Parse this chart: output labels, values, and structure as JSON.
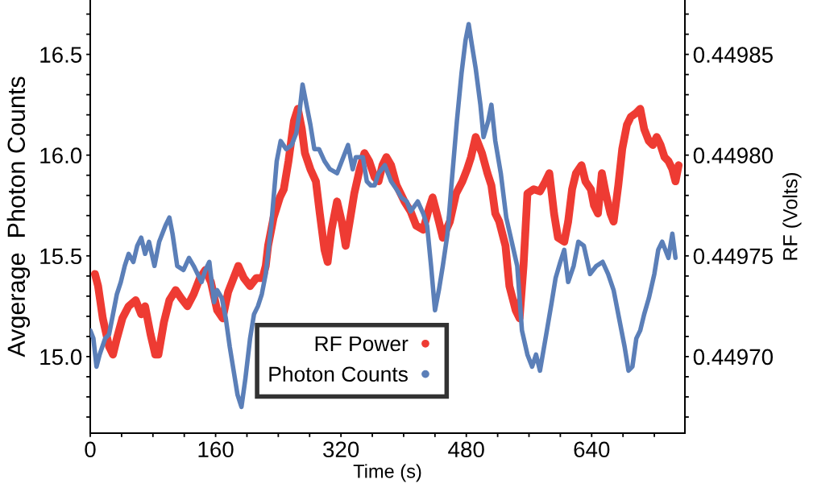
{
  "chart_data": {
    "type": "line",
    "xlabel": "Time (s)",
    "ylabel": "Avgerage  Photon Counts",
    "y2label": "RF (Volts)",
    "legend": "bottom",
    "grid": false,
    "marker": "none",
    "line_style": "solid",
    "xlim": [
      0,
      759
    ],
    "ylim": [
      14.62,
      16.77
    ],
    "y2lim": [
      0.449662,
      0.449877
    ],
    "xticks": [
      0,
      {
        "value": 40,
        "label": null
      },
      {
        "value": 80,
        "label": null
      },
      {
        "value": 120,
        "label": null
      },
      160,
      {
        "value": 200,
        "label": null
      },
      {
        "value": 240,
        "label": null
      },
      {
        "value": 280,
        "label": null
      },
      320,
      {
        "value": 360,
        "label": null
      },
      {
        "value": 400,
        "label": null
      },
      {
        "value": 440,
        "label": null
      },
      480,
      {
        "value": 520,
        "label": null
      },
      {
        "value": 560,
        "label": null
      },
      {
        "value": 600,
        "label": null
      },
      640,
      {
        "value": 680,
        "label": null
      },
      {
        "value": 720,
        "label": null
      }
    ],
    "yticks": [
      {
        "value": 14.7,
        "label": null
      },
      {
        "value": 14.8,
        "label": null
      },
      {
        "value": 14.9,
        "label": null
      },
      {
        "value": 15.0,
        "label": "15.0"
      },
      {
        "value": 15.1,
        "label": null
      },
      {
        "value": 15.2,
        "label": null
      },
      {
        "value": 15.3,
        "label": null
      },
      {
        "value": 15.4,
        "label": null
      },
      {
        "value": 15.5,
        "label": "15.5"
      },
      {
        "value": 15.6,
        "label": null
      },
      {
        "value": 15.7,
        "label": null
      },
      {
        "value": 15.8,
        "label": null
      },
      {
        "value": 15.9,
        "label": null
      },
      {
        "value": 16.0,
        "label": "16.0"
      },
      {
        "value": 16.1,
        "label": null
      },
      {
        "value": 16.2,
        "label": null
      },
      {
        "value": 16.3,
        "label": null
      },
      {
        "value": 16.4,
        "label": null
      },
      {
        "value": 16.5,
        "label": "16.5"
      },
      {
        "value": 16.6,
        "label": null
      },
      {
        "value": 16.7,
        "label": null
      }
    ],
    "y2ticks": [
      {
        "value": 0.44967,
        "label": null
      },
      {
        "value": 0.44968,
        "label": null
      },
      {
        "value": 0.44969,
        "label": null
      },
      {
        "value": 0.4497,
        "label": "0.44970"
      },
      {
        "value": 0.44971,
        "label": null
      },
      {
        "value": 0.44972,
        "label": null
      },
      {
        "value": 0.44973,
        "label": null
      },
      {
        "value": 0.44974,
        "label": null
      },
      {
        "value": 0.44975,
        "label": "0.44975"
      },
      {
        "value": 0.44976,
        "label": null
      },
      {
        "value": 0.44977,
        "label": null
      },
      {
        "value": 0.44978,
        "label": null
      },
      {
        "value": 0.44979,
        "label": null
      },
      {
        "value": 0.4498,
        "label": "0.44980"
      },
      {
        "value": 0.44981,
        "label": null
      },
      {
        "value": 0.44982,
        "label": null
      },
      {
        "value": 0.44983,
        "label": null
      },
      {
        "value": 0.44984,
        "label": null
      },
      {
        "value": 0.44985,
        "label": "0.44985"
      },
      {
        "value": 0.44986,
        "label": null
      },
      {
        "value": 0.44987,
        "label": null
      }
    ],
    "series": [
      {
        "name": "RF Power",
        "color": "#ee3b33",
        "axis": "y2",
        "x": [
          6,
          10,
          16,
          24,
          29,
          34,
          41,
          49,
          58,
          65,
          70,
          77,
          83,
          87,
          94,
          101,
          109,
          116,
          124,
          132,
          140,
          147,
          154,
          162,
          169,
          176,
          183,
          189,
          196,
          204,
          212,
          220,
          224,
          227,
          234,
          242,
          247,
          253,
          260,
          265,
          270,
          274,
          281,
          288,
          293,
          299,
          303,
          308,
          315,
          321,
          326,
          332,
          337,
          344,
          350,
          356,
          363,
          368,
          373,
          378,
          384,
          391,
          396,
          401,
          409,
          416,
          425,
          432,
          437,
          445,
          450,
          459,
          467,
          475,
          481,
          486,
          492,
          500,
          507,
          512,
          517,
          522,
          530,
          535,
          543,
          548,
          553,
          558,
          566,
          574,
          581,
          586,
          592,
          597,
          605,
          610,
          615,
          620,
          627,
          632,
          639,
          643,
          648,
          653,
          658,
          664,
          668,
          674,
          679,
          685,
          690,
          697,
          702,
          707,
          713,
          718,
          723,
          728,
          733,
          738,
          743,
          747,
          751
        ],
        "values": [
          0.449741,
          0.449735,
          0.449719,
          0.449705,
          0.449701,
          0.449709,
          0.449719,
          0.449725,
          0.449728,
          0.449721,
          0.449725,
          0.449711,
          0.449701,
          0.449701,
          0.449717,
          0.449728,
          0.449733,
          0.449729,
          0.449725,
          0.449731,
          0.449739,
          0.449743,
          0.449737,
          0.449723,
          0.449719,
          0.449732,
          0.449739,
          0.449745,
          0.449739,
          0.449735,
          0.449739,
          0.449739,
          0.449745,
          0.449755,
          0.449769,
          0.449779,
          0.449783,
          0.449797,
          0.449817,
          0.449823,
          0.449813,
          0.449801,
          0.449793,
          0.449787,
          0.449771,
          0.449753,
          0.449747,
          0.449763,
          0.449777,
          0.449767,
          0.449755,
          0.449769,
          0.449781,
          0.449793,
          0.449801,
          0.449797,
          0.449789,
          0.449787,
          0.449795,
          0.449799,
          0.449795,
          0.449785,
          0.449781,
          0.449777,
          0.449772,
          0.449765,
          0.449763,
          0.449773,
          0.449779,
          0.449767,
          0.449759,
          0.449767,
          0.449781,
          0.449787,
          0.449793,
          0.449799,
          0.449809,
          0.449801,
          0.449791,
          0.449785,
          0.449771,
          0.449767,
          0.449755,
          0.449735,
          0.449723,
          0.449719,
          0.449745,
          0.449781,
          0.449783,
          0.449782,
          0.449787,
          0.449791,
          0.449771,
          0.449759,
          0.449757,
          0.449767,
          0.449783,
          0.449791,
          0.449795,
          0.449787,
          0.449783,
          0.449775,
          0.449771,
          0.449791,
          0.449781,
          0.449771,
          0.449767,
          0.449785,
          0.449803,
          0.449815,
          0.449819,
          0.449821,
          0.449823,
          0.449813,
          0.449807,
          0.449805,
          0.449809,
          0.449805,
          0.449799,
          0.449797,
          0.449793,
          0.449787,
          0.449795
        ]
      },
      {
        "name": "Photon Counts",
        "color": "#5b7fb8",
        "x": [
          0,
          4,
          8,
          12,
          19,
          24,
          29,
          34,
          39,
          44,
          49,
          55,
          60,
          65,
          70,
          75,
          82,
          88,
          96,
          101,
          105,
          111,
          119,
          126,
          132,
          137,
          142,
          147,
          152,
          158,
          162,
          168,
          173,
          178,
          183,
          188,
          193,
          198,
          204,
          209,
          214,
          219,
          224,
          231,
          238,
          243,
          250,
          257,
          263,
          267,
          271,
          276,
          281,
          286,
          292,
          299,
          306,
          315,
          319,
          325,
          329,
          335,
          339,
          348,
          353,
          358,
          363,
          368,
          376,
          384,
          391,
          397,
          404,
          409,
          418,
          425,
          430,
          435,
          440,
          445,
          450,
          456,
          461,
          468,
          474,
          479,
          483,
          487,
          492,
          498,
          502,
          508,
          512,
          517,
          524,
          531,
          538,
          545,
          551,
          558,
          564,
          569,
          574,
          582,
          589,
          594,
          600,
          605,
          610,
          617,
          623,
          630,
          638,
          646,
          654,
          661,
          668,
          675,
          682,
          687,
          692,
          697,
          702,
          707,
          713,
          720,
          725,
          730,
          738,
          743,
          747
        ],
        "values": [
          15.13,
          15.09,
          14.95,
          15.01,
          15.09,
          15.11,
          15.21,
          15.31,
          15.37,
          15.45,
          15.51,
          15.47,
          15.55,
          15.59,
          15.51,
          15.57,
          15.45,
          15.57,
          15.65,
          15.69,
          15.61,
          15.45,
          15.43,
          15.49,
          15.45,
          15.41,
          15.37,
          15.43,
          15.47,
          15.27,
          15.33,
          15.29,
          15.19,
          15.05,
          14.93,
          14.81,
          14.75,
          14.89,
          15.09,
          15.21,
          15.25,
          15.31,
          15.41,
          15.65,
          15.97,
          16.07,
          16.03,
          16.05,
          16.11,
          16.21,
          16.35,
          16.25,
          16.15,
          16.03,
          16.03,
          15.97,
          15.93,
          15.91,
          15.95,
          16.01,
          16.05,
          15.93,
          15.99,
          15.99,
          15.87,
          15.85,
          15.85,
          15.91,
          15.95,
          15.87,
          15.83,
          15.79,
          15.77,
          15.72,
          15.77,
          15.71,
          15.65,
          15.45,
          15.23,
          15.33,
          15.45,
          15.61,
          15.85,
          16.17,
          16.41,
          16.57,
          16.65,
          16.55,
          16.43,
          16.25,
          16.09,
          16.17,
          16.25,
          16.07,
          15.91,
          15.69,
          15.57,
          15.45,
          15.13,
          15.01,
          14.95,
          15.01,
          14.93,
          15.11,
          15.27,
          15.39,
          15.47,
          15.53,
          15.37,
          15.45,
          15.57,
          15.55,
          15.41,
          15.45,
          15.47,
          15.41,
          15.33,
          15.19,
          15.05,
          14.93,
          14.95,
          15.09,
          15.13,
          15.21,
          15.29,
          15.41,
          15.53,
          15.57,
          15.49,
          15.61,
          15.49
        ]
      }
    ]
  }
}
